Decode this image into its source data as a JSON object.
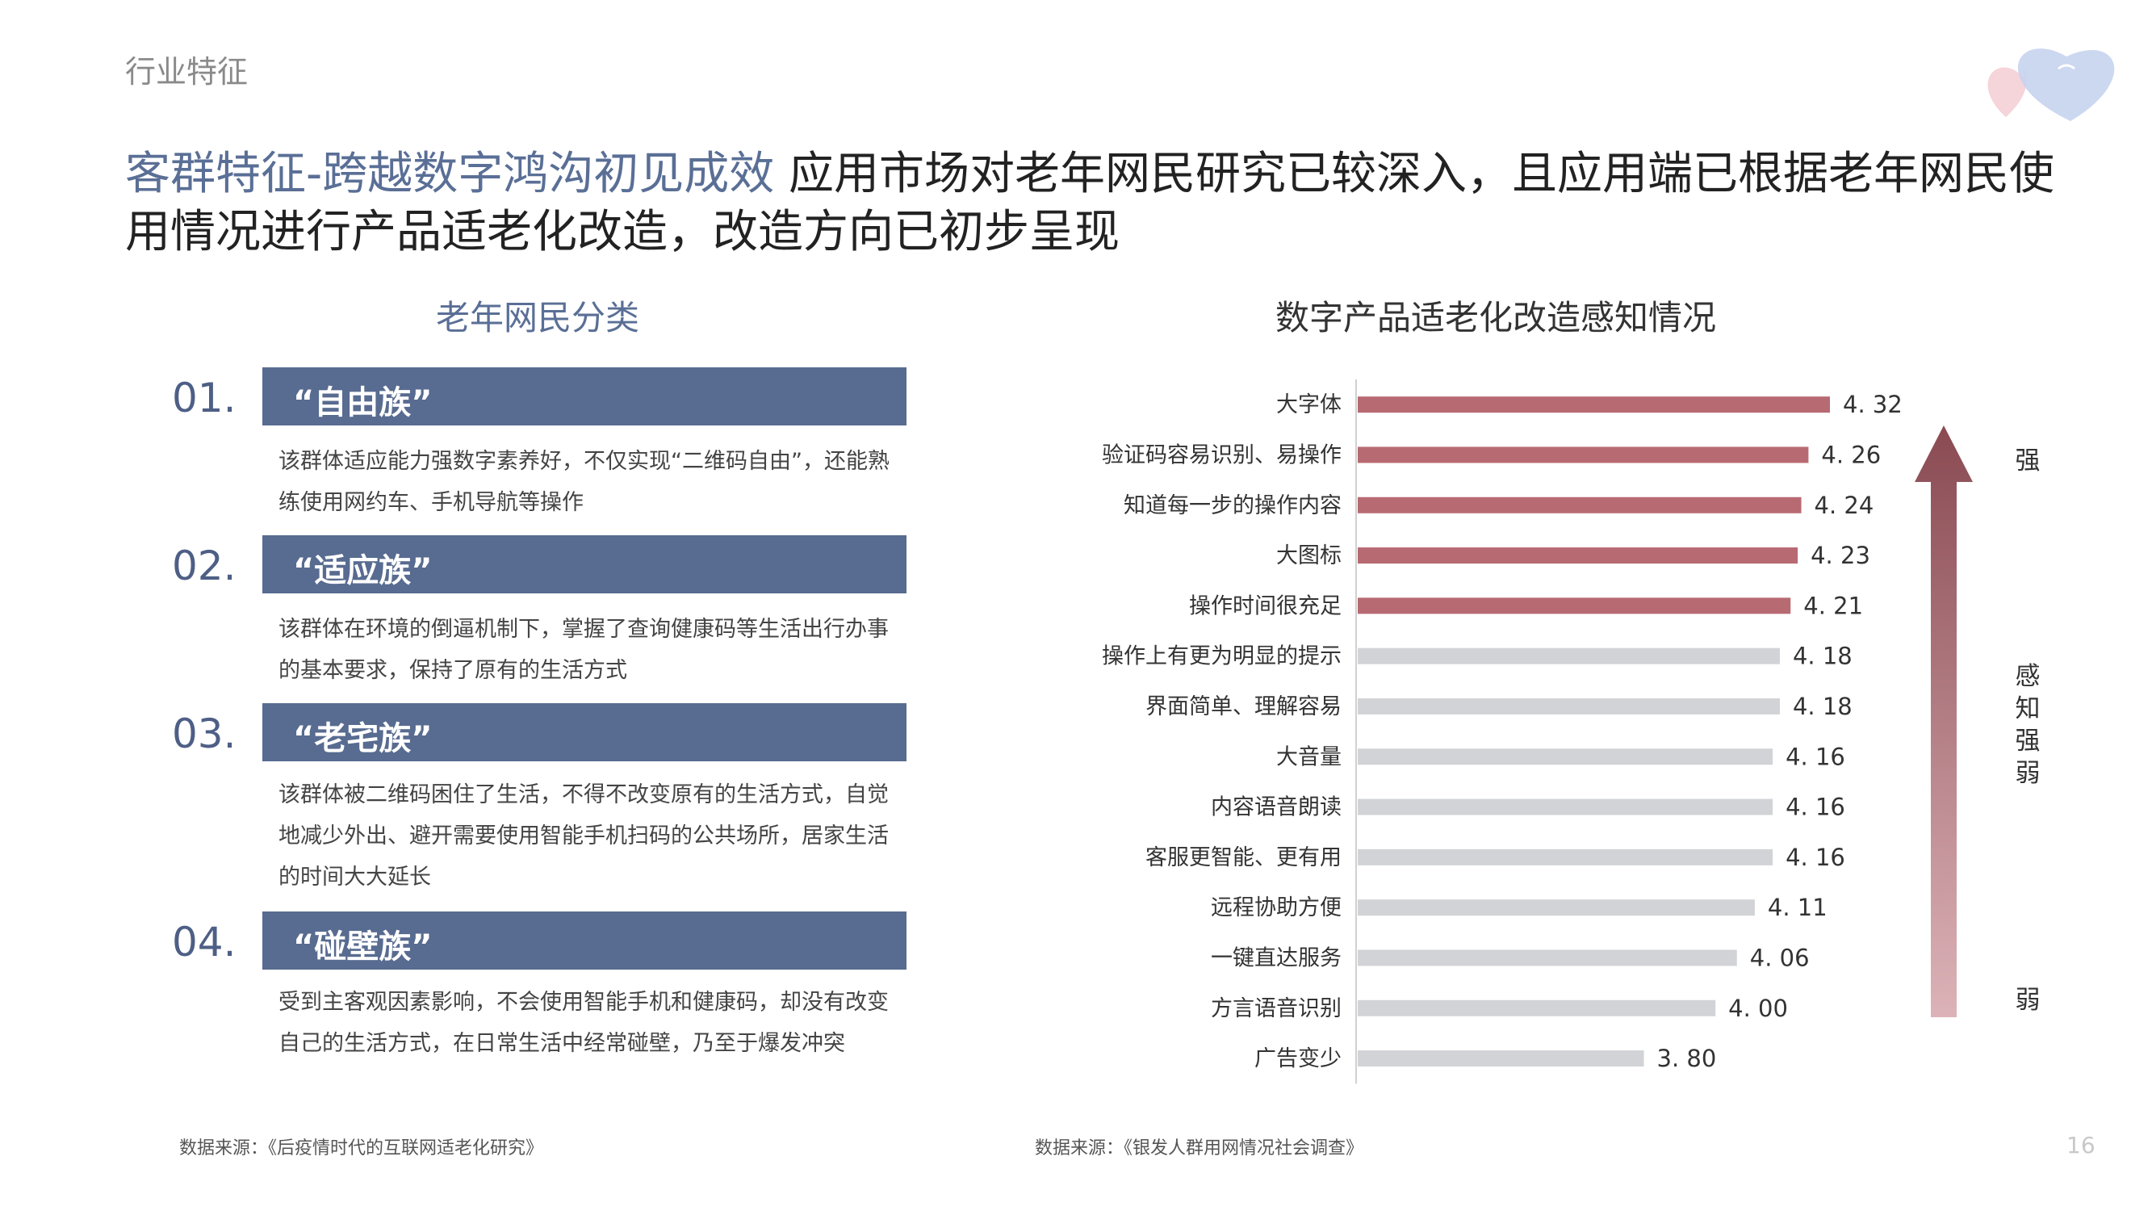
{
  "page": {
    "section_tag": "行业特征",
    "page_number": "16",
    "headline": {
      "accent": "客群特征-跨越数字鸿沟初见成效",
      "rest": "应用市场对老年网民研究已较深入，且应用端已根据老年网民使用情况进行产品适老化改造，改造方向已初步呈现"
    }
  },
  "left_panel": {
    "title": "老年网民分类",
    "categories": [
      {
        "num": "01.",
        "name": "“自由族”",
        "desc": "该群体适应能力强数字素养好，不仅实现“二维码自由”，还能熟练使用网约车、手机导航等操作"
      },
      {
        "num": "02.",
        "name": "“适应族”",
        "desc": "该群体在环境的倒逼机制下，掌握了查询健康码等生活出行办事的基本要求，保持了原有的生活方式"
      },
      {
        "num": "03.",
        "name": "“老宅族”",
        "desc": "该群体被二维码困住了生活，不得不改变原有的生活方式，自觉地减少外出、避开需要使用智能手机扫码的公共场所，居家生活的时间大大延长"
      },
      {
        "num": "04.",
        "name": "“碰壁族”",
        "desc": "受到主客观因素影响，不会使用智能手机和健康码，却没有改变自己的生活方式，在日常生活中经常碰壁，乃至于爆发冲突"
      }
    ],
    "source": "数据来源：《后疫情时代的互联网适老化研究》"
  },
  "right_panel": {
    "source": "数据来源：《银发人群用网情况社会调查》",
    "arrow_labels": {
      "strong": "强",
      "middle": "感知强弱",
      "weak": "弱"
    }
  },
  "colors": {
    "accent_blue": "#5a6f96",
    "category_bar": "#586b90",
    "highlight_bar": "#b86a72",
    "normal_bar": "#d2d3d7",
    "arrow_top": "#8a4a52",
    "arrow_bottom": "#dcb3b8"
  },
  "chart_data": {
    "type": "bar",
    "orientation": "horizontal",
    "title": "数字产品适老化改造感知情况",
    "categories": [
      "大字体",
      "验证码容易识别、易操作",
      "知道每一步的操作内容",
      "大图标",
      "操作时间很充足",
      "操作上有更为明显的提示",
      "界面简单、理解容易",
      "大音量",
      "内容语音朗读",
      "客服更智能、更有用",
      "远程协助方便",
      "一键直达服务",
      "方言语音识别",
      "广告变少"
    ],
    "values": [
      4.32,
      4.26,
      4.24,
      4.23,
      4.21,
      4.18,
      4.18,
      4.16,
      4.16,
      4.16,
      4.11,
      4.06,
      4.0,
      3.8
    ],
    "value_labels": [
      "4. 32",
      "4. 26",
      "4. 24",
      "4. 23",
      "4. 21",
      "4. 18",
      "4. 18",
      "4. 16",
      "4. 16",
      "4. 16",
      "4. 11",
      "4. 06",
      "4. 00",
      "3. 80"
    ],
    "highlighted_count": 5,
    "xlim": [
      3.0,
      4.32
    ],
    "grid": false,
    "legend": "none"
  }
}
